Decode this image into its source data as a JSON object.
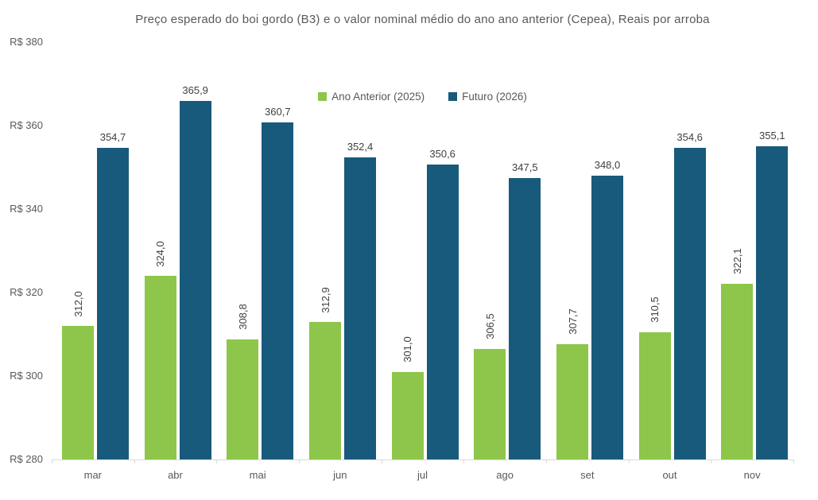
{
  "chart_data": {
    "type": "bar",
    "title": "Preço esperado do boi gordo (B3) e o valor nominal médio do ano ano anterior (Cepea), Reais por arroba",
    "xlabel": "",
    "ylabel": "",
    "categories": [
      "mar",
      "abr",
      "mai",
      "jun",
      "jul",
      "ago",
      "set",
      "out",
      "nov"
    ],
    "series": [
      {
        "name": "Ano Anterior (2025)",
        "color": "#8dc64a",
        "values": [
          312.0,
          324.0,
          308.8,
          312.9,
          301.0,
          306.5,
          307.7,
          310.5,
          322.1
        ],
        "labels": [
          "312,0",
          "324,0",
          "308,8",
          "312,9",
          "301,0",
          "306,5",
          "307,7",
          "310,5",
          "322,1"
        ],
        "label_orientation": "vertical"
      },
      {
        "name": "Futuro (2026)",
        "color": "#185a7c",
        "values": [
          354.7,
          365.9,
          360.7,
          352.4,
          350.6,
          347.5,
          348.0,
          354.6,
          355.1
        ],
        "labels": [
          "354,7",
          "365,9",
          "360,7",
          "352,4",
          "350,6",
          "347,5",
          "348,0",
          "354,6",
          "355,1"
        ],
        "label_orientation": "horizontal"
      }
    ],
    "y_axis": {
      "min": 280,
      "max": 380,
      "step": 20,
      "tick_values": [
        380,
        360,
        340,
        320,
        300,
        280
      ],
      "tick_labels": [
        "R$ 380",
        "R$ 360",
        "R$ 340",
        "R$ 320",
        "R$ 300",
        "R$ 280"
      ]
    },
    "legend_position": "top-center",
    "grid": false,
    "colors": {
      "ano_anterior": "#8dc64a",
      "futuro": "#185a7c",
      "axis_line": "#d9d9d9",
      "axis_text": "#595959",
      "data_label_text": "#404040",
      "background": "#ffffff"
    }
  }
}
